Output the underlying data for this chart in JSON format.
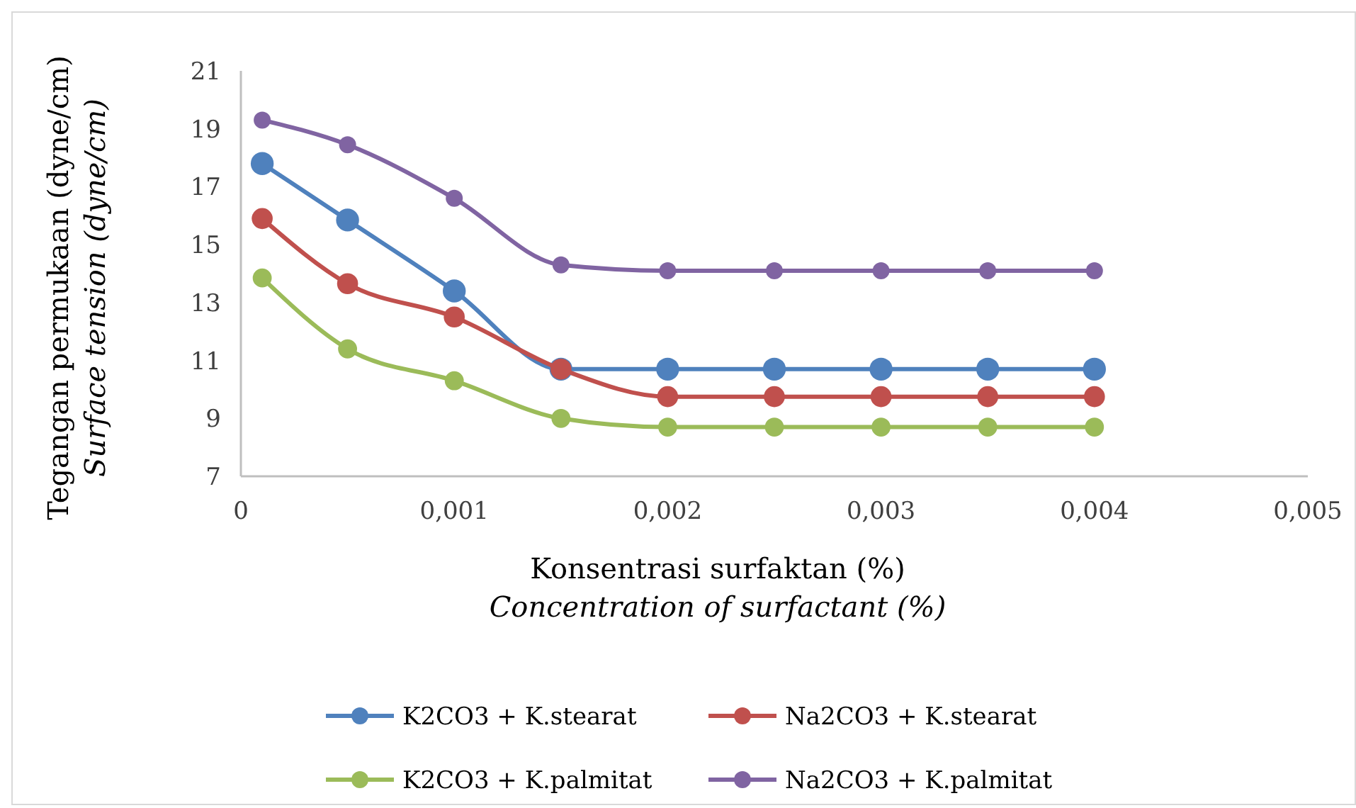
{
  "chart_data": {
    "type": "line",
    "xlabel": "Konsentrasi surfaktan (%)\nConcentration of surfactant (%)",
    "ylabel": "Tegangan permukaan (dyne/cm)\nSurface tension (dyne/cm)",
    "x": [
      0.0001,
      0.0005,
      0.001,
      0.0015,
      0.002,
      0.0025,
      0.003,
      0.0035,
      0.004
    ],
    "xlim": [
      0,
      0.005
    ],
    "xticks": [
      0,
      {
        "value": 0.001,
        "label": "0,001"
      },
      {
        "value": 0.002,
        "label": "0,002"
      },
      {
        "value": 0.003,
        "label": "0,003"
      },
      {
        "value": 0.004,
        "label": "0,004"
      },
      {
        "value": 0.005,
        "label": "0,005"
      }
    ],
    "ylim": [
      7,
      21
    ],
    "yticks": [
      7,
      9,
      11,
      13,
      15,
      17,
      19,
      21
    ],
    "grid": false,
    "legend": "bottom",
    "marker": "circle",
    "line_style": "solid",
    "series": [
      {
        "name": "K2CO3 + K.stearat",
        "color": "#4f81bd",
        "values": [
          17.8,
          15.85,
          13.4,
          10.7,
          10.7,
          10.7,
          10.7,
          10.7,
          10.7
        ]
      },
      {
        "name": "Na2CO3 + K.stearat",
        "color": "#c0504d",
        "values": [
          15.9,
          13.65,
          12.5,
          10.7,
          9.75,
          9.75,
          9.75,
          9.75,
          9.75
        ]
      },
      {
        "name": "K2CO3 + K.palmitat",
        "color": "#9bbb59",
        "values": [
          13.85,
          11.4,
          10.3,
          9.0,
          8.7,
          8.7,
          8.7,
          8.7,
          8.7
        ]
      },
      {
        "name": "Na2CO3 + K.palmitat",
        "color": "#8064a2",
        "values": [
          19.3,
          18.45,
          16.6,
          14.3,
          14.1,
          14.1,
          14.1,
          14.1,
          14.1
        ]
      }
    ]
  }
}
